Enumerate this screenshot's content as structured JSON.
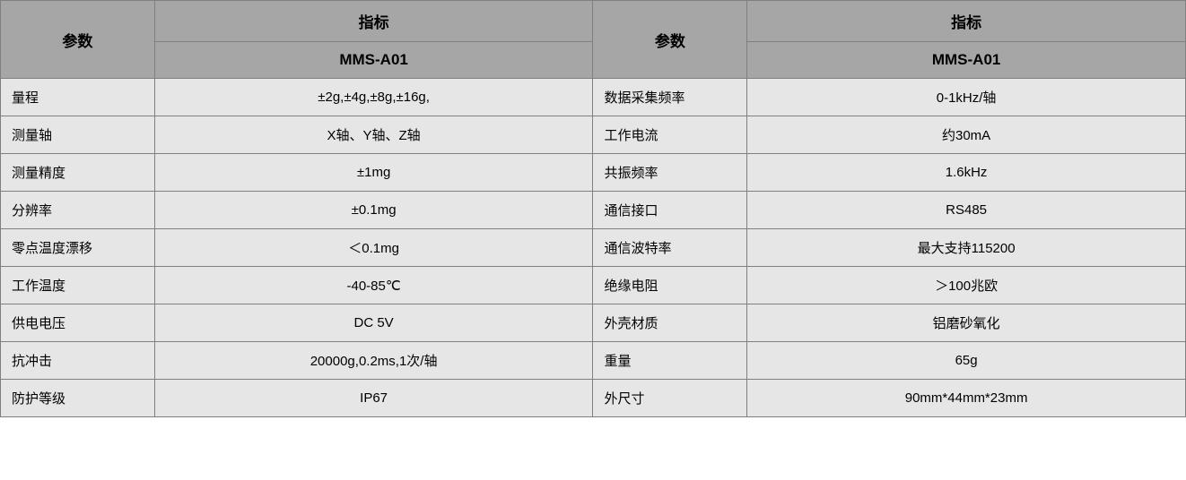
{
  "table": {
    "headers": {
      "param_label": "参数",
      "spec_label": "指标",
      "model": "MMS-A01"
    },
    "left_rows": [
      {
        "param": "量程",
        "value": "±2g,±4g,±8g,±16g,"
      },
      {
        "param": "测量轴",
        "value": "X轴、Y轴、Z轴"
      },
      {
        "param": "测量精度",
        "value": "±1mg"
      },
      {
        "param": "分辨率",
        "value": "±0.1mg"
      },
      {
        "param": "零点温度漂移",
        "value": "＜0.1mg"
      },
      {
        "param": "工作温度",
        "value": "-40-85℃"
      },
      {
        "param": "供电电压",
        "value": "DC 5V"
      },
      {
        "param": "抗冲击",
        "value": "20000g,0.2ms,1次/轴"
      },
      {
        "param": "防护等级",
        "value": "IP67"
      }
    ],
    "right_rows": [
      {
        "param": "数据采集频率",
        "value": "0-1kHz/轴"
      },
      {
        "param": "工作电流",
        "value": "约30mA"
      },
      {
        "param": "共振频率",
        "value": "1.6kHz"
      },
      {
        "param": "通信接口",
        "value": "RS485"
      },
      {
        "param": "通信波特率",
        "value": "最大支持115200"
      },
      {
        "param": "绝缘电阻",
        "value": "＞100兆欧"
      },
      {
        "param": "外壳材质",
        "value": "铝磨砂氧化"
      },
      {
        "param": "重量",
        "value": "65g"
      },
      {
        "param": "外尺寸",
        "value": "90mm*44mm*23mm"
      }
    ],
    "colors": {
      "header_bg": "#a6a6a6",
      "cell_bg": "#e6e6e6",
      "border": "#808080",
      "text": "#000000"
    }
  }
}
